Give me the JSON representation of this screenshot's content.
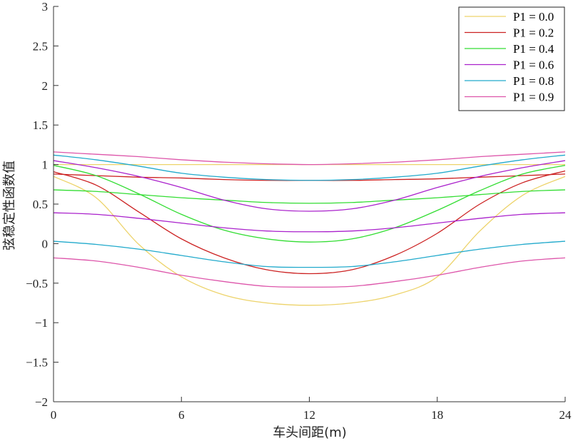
{
  "chart_data": {
    "type": "line",
    "title": "",
    "xlabel": "车头间距(m)",
    "ylabel": "弦稳定性函数值",
    "xlim": [
      0,
      24
    ],
    "ylim": [
      -2,
      3
    ],
    "xticks": [
      0,
      6,
      12,
      18,
      24
    ],
    "xtick_labels": [
      "0",
      "6",
      "12",
      "18",
      "24"
    ],
    "yticks": [
      -2,
      -1.5,
      -1,
      -0.5,
      0,
      0.5,
      1,
      1.5,
      2,
      2.5,
      3
    ],
    "ytick_labels": [
      "−2",
      "−1.5",
      "−1",
      "−0.5",
      "0",
      "0.5",
      "1",
      "1.5",
      "2",
      "2.5",
      "3"
    ],
    "grid": false,
    "legend_position": "top-right",
    "x": [
      0,
      2,
      4,
      6,
      8,
      10,
      12,
      14,
      16,
      18,
      20,
      22,
      24
    ],
    "series": [
      {
        "name": "P1 = 0.0",
        "color": "#EDD36A",
        "values": [
          1.0,
          1.0,
          1.0,
          1.0,
          1.0,
          1.0,
          1.0,
          1.0,
          1.0,
          1.0,
          1.0,
          1.0,
          1.0
        ]
      },
      {
        "name": "P1 = 0.0",
        "color": "#EDD36A",
        "values": [
          0.85,
          0.58,
          -0.01,
          -0.42,
          -0.65,
          -0.75,
          -0.78,
          -0.75,
          -0.65,
          -0.42,
          0.16,
          0.61,
          0.85
        ]
      },
      {
        "name": "P1 = 0.2",
        "color": "#CC2222",
        "values": [
          0.88,
          0.86,
          0.84,
          0.83,
          0.81,
          0.8,
          0.8,
          0.8,
          0.81,
          0.82,
          0.84,
          0.86,
          0.88
        ]
      },
      {
        "name": "P1 = 0.2",
        "color": "#CC2222",
        "values": [
          0.91,
          0.74,
          0.4,
          0.06,
          -0.18,
          -0.33,
          -0.38,
          -0.33,
          -0.15,
          0.13,
          0.5,
          0.77,
          0.92
        ]
      },
      {
        "name": "P1 = 0.4",
        "color": "#33DD33",
        "values": [
          0.68,
          0.66,
          0.62,
          0.58,
          0.55,
          0.52,
          0.51,
          0.52,
          0.55,
          0.58,
          0.62,
          0.66,
          0.68
        ]
      },
      {
        "name": "P1 = 0.4",
        "color": "#33DD33",
        "values": [
          0.99,
          0.86,
          0.63,
          0.37,
          0.17,
          0.06,
          0.02,
          0.06,
          0.2,
          0.42,
          0.67,
          0.88,
          0.99
        ]
      },
      {
        "name": "P1 = 0.6",
        "color": "#AA22CC",
        "values": [
          0.39,
          0.37,
          0.32,
          0.26,
          0.2,
          0.16,
          0.15,
          0.16,
          0.2,
          0.26,
          0.32,
          0.37,
          0.39
        ]
      },
      {
        "name": "P1 = 0.6",
        "color": "#AA22CC",
        "values": [
          1.05,
          0.96,
          0.85,
          0.71,
          0.55,
          0.44,
          0.41,
          0.44,
          0.55,
          0.71,
          0.85,
          0.96,
          1.05
        ]
      },
      {
        "name": "P1 = 0.8",
        "color": "#22AACC",
        "values": [
          0.03,
          -0.01,
          -0.07,
          -0.15,
          -0.23,
          -0.29,
          -0.3,
          -0.29,
          -0.23,
          -0.15,
          -0.07,
          -0.01,
          0.03
        ]
      },
      {
        "name": "P1 = 0.8",
        "color": "#22AACC",
        "values": [
          1.12,
          1.06,
          0.98,
          0.89,
          0.84,
          0.81,
          0.8,
          0.81,
          0.84,
          0.89,
          0.98,
          1.06,
          1.12
        ]
      },
      {
        "name": "P1 = 0.9",
        "color": "#DD55AA",
        "values": [
          -0.18,
          -0.22,
          -0.3,
          -0.4,
          -0.48,
          -0.54,
          -0.55,
          -0.54,
          -0.48,
          -0.4,
          -0.3,
          -0.22,
          -0.18
        ]
      },
      {
        "name": "P1 = 0.9",
        "color": "#DD55AA",
        "values": [
          1.16,
          1.13,
          1.1,
          1.06,
          1.03,
          1.01,
          1.0,
          1.01,
          1.03,
          1.06,
          1.1,
          1.13,
          1.16
        ]
      }
    ],
    "legend": [
      {
        "label": "P1 = 0.0",
        "color": "#EDD36A"
      },
      {
        "label": "P1 = 0.2",
        "color": "#CC2222"
      },
      {
        "label": "P1 = 0.4",
        "color": "#33DD33"
      },
      {
        "label": "P1 = 0.6",
        "color": "#AA22CC"
      },
      {
        "label": "P1 = 0.8",
        "color": "#22AACC"
      },
      {
        "label": "P1 = 0.9",
        "color": "#DD55AA"
      }
    ]
  }
}
